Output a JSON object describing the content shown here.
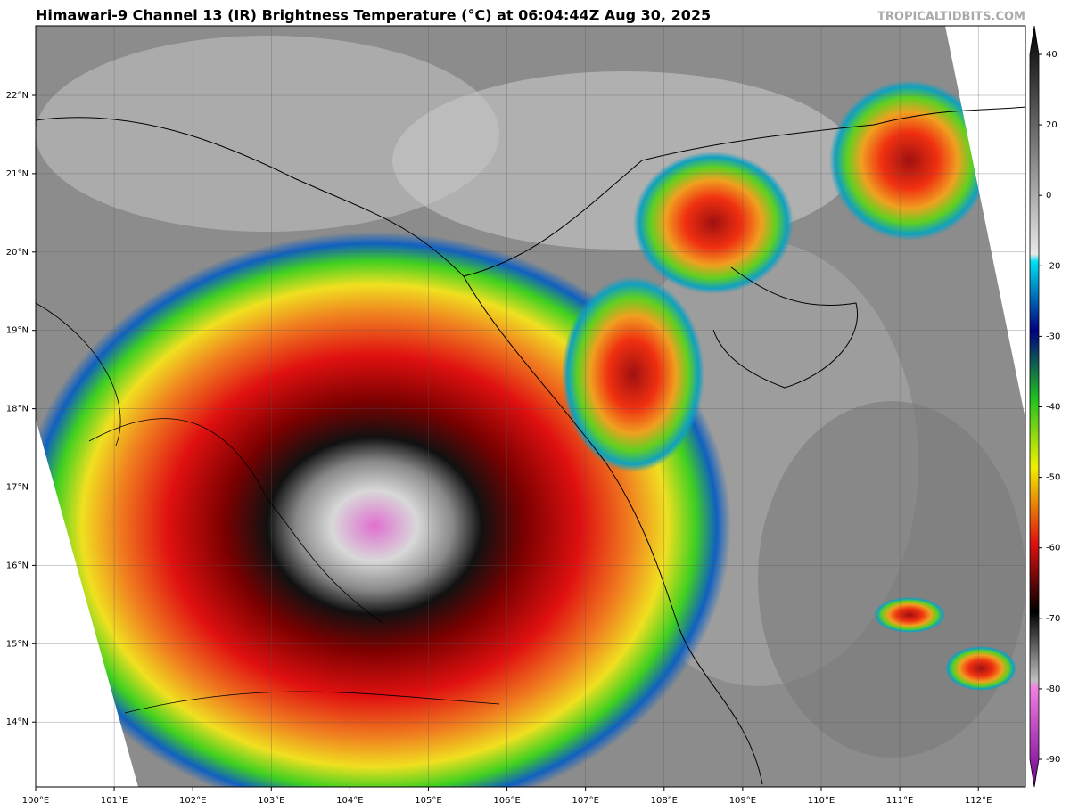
{
  "title": "Himawari-9 Channel 13 (IR) Brightness Temperature (°C) at 06:04:44Z Aug 30, 2025",
  "source": "TROPICALTIDBITS.COM",
  "lon_labels": [
    "100°E",
    "101°E",
    "102°E",
    "103°E",
    "104°E",
    "105°E",
    "106°E",
    "107°E",
    "108°E",
    "109°E",
    "110°E",
    "111°E",
    "112°E"
  ],
  "lat_labels": [
    "22°N",
    "21°N",
    "20°N",
    "19°N",
    "18°N",
    "17°N",
    "16°N",
    "15°N",
    "14°N"
  ],
  "colorbar": {
    "ticks": [
      40,
      20,
      0,
      -20,
      -30,
      -40,
      -50,
      -60,
      -70,
      -80,
      -90
    ]
  }
}
